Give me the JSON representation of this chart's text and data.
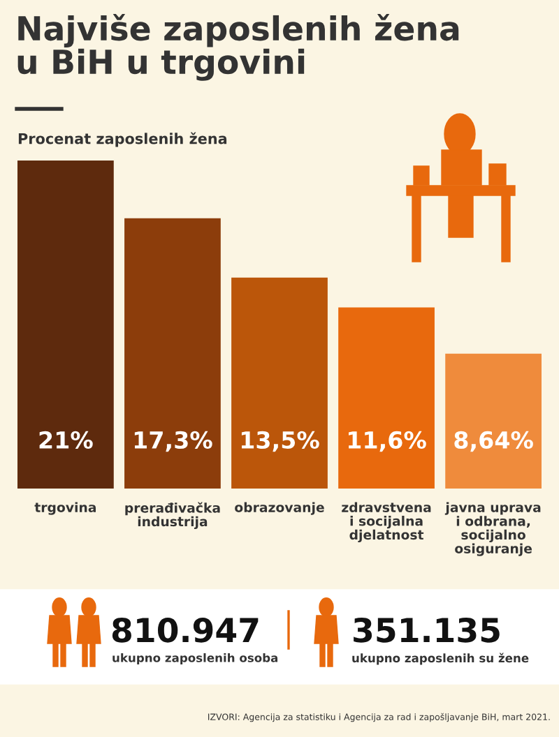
{
  "chart_data": {
    "type": "bar",
    "title": "Najviše zaposlenih žena\nu BiH u trgovini",
    "subtitle": "Procenat zaposlenih žena",
    "categories": [
      "trgovina",
      "prerađivačka\nindustrija",
      "obrazovanje",
      "zdravstvena\ni socijalna\ndjelatnost",
      "javna uprava\ni odbrana,\nsocijalno\nosiguranje"
    ],
    "values": [
      21,
      17.3,
      13.5,
      11.6,
      8.64
    ],
    "colors": [
      "#5e2a0d",
      "#8c3d0b",
      "#bb560a",
      "#e8690d",
      "#ef8b3c"
    ],
    "value_labels": [
      "21%",
      "17,3%",
      "13,5%",
      "11,6%",
      "8,64%"
    ],
    "annotations": [
      "810.947",
      "ukupno zaposlenih osoba",
      "351.135",
      "ukupno zaposlenih su žene",
      "IZVORI: Agencija za statistiku i Agencija za rad i zapošljavanje BiH, mart 2021."
    ]
  }
}
